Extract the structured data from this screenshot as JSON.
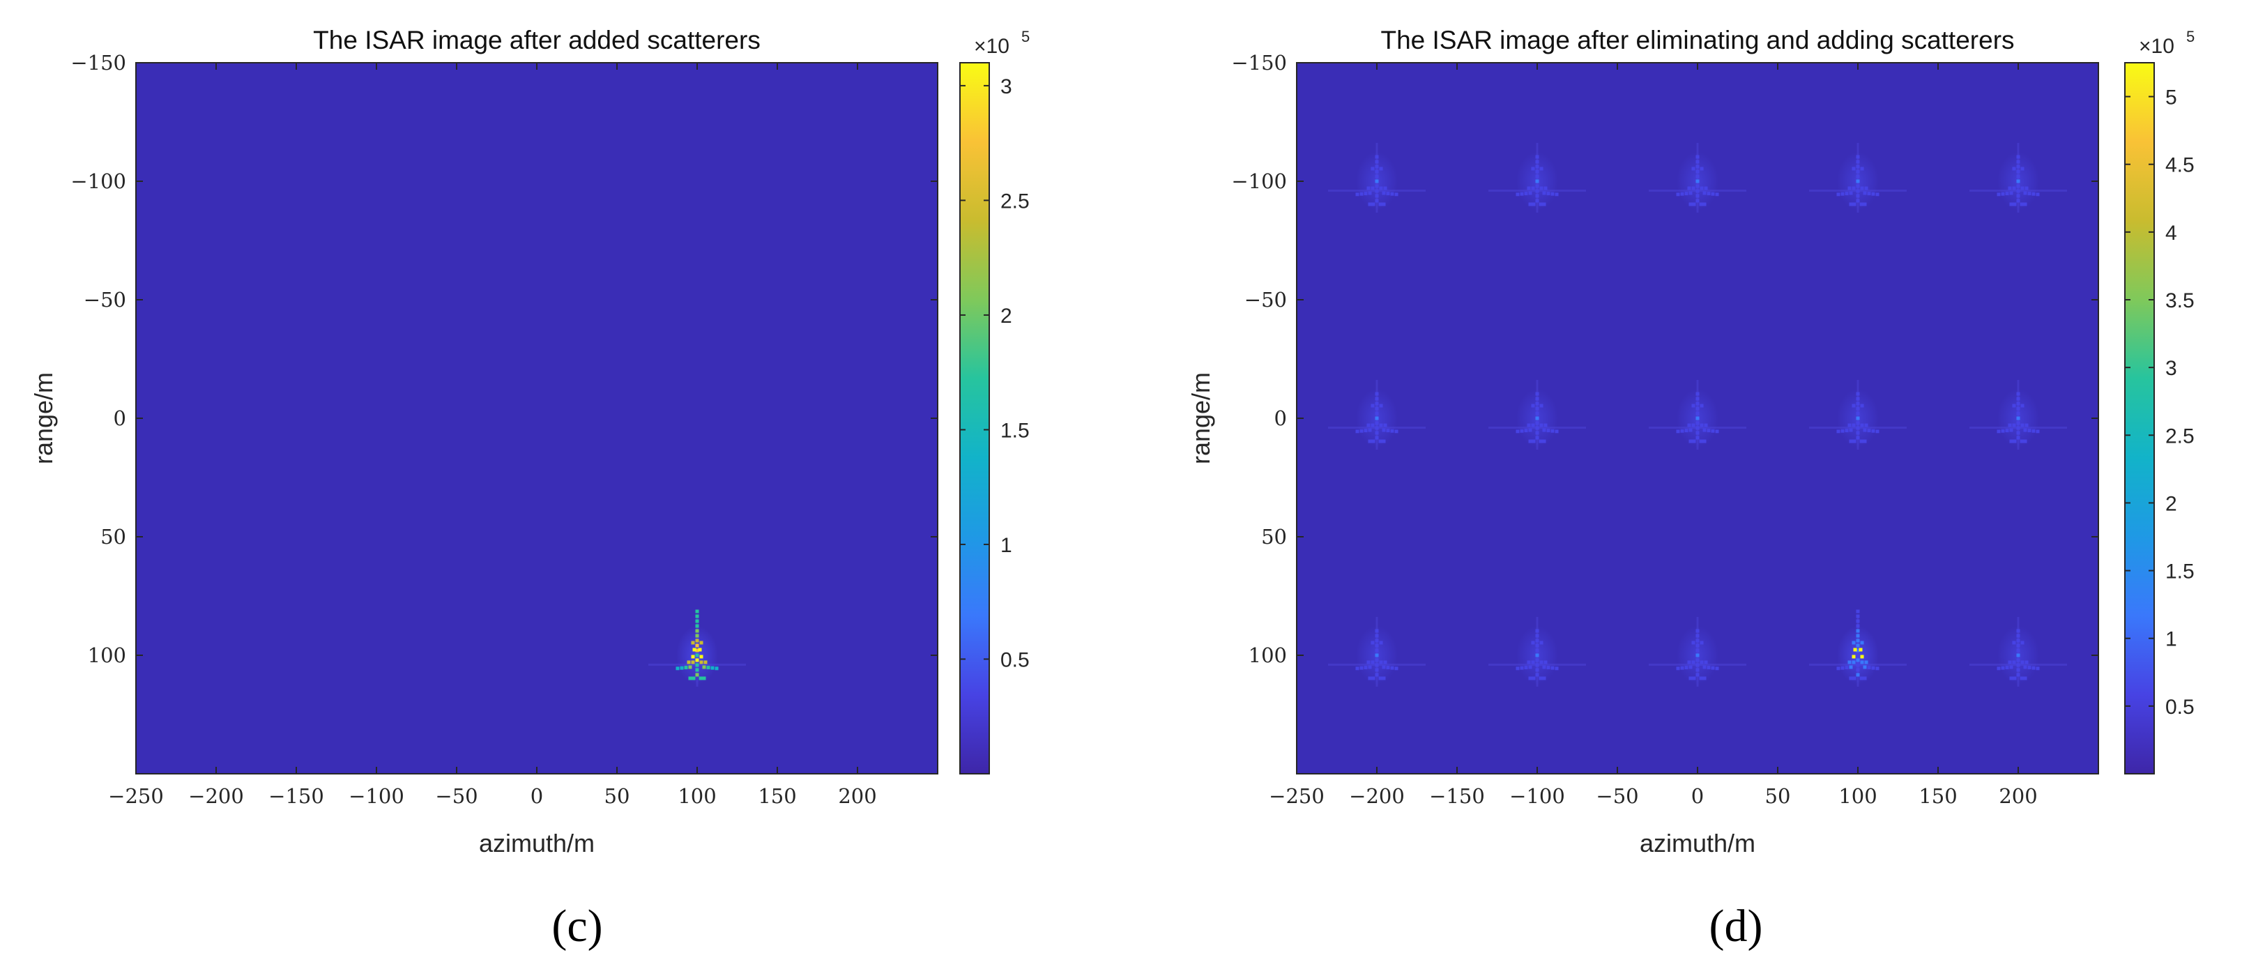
{
  "colors": {
    "background": "#3A2DB6",
    "colormap": [
      "#3E26A8",
      "#4743E4",
      "#3A78FB",
      "#1F99E5",
      "#12B3C9",
      "#27C49E",
      "#7FC95B",
      "#C9BC2F",
      "#F9C236",
      "#F9FB15"
    ]
  },
  "chart_data": [
    {
      "type": "heatmap",
      "panel_label": "(c)",
      "title": "The ISAR image after added scatterers",
      "xlabel": "azimuth/m",
      "ylabel": "range/m",
      "xlim": [
        -250,
        250
      ],
      "ylim": [
        -150,
        150
      ],
      "y_reversed": true,
      "xticks": [
        -250,
        -200,
        -150,
        -100,
        -50,
        0,
        50,
        100,
        150,
        200
      ],
      "xtick_labels": [
        "−250",
        "−200",
        "−150",
        "−100",
        "−50",
        "0",
        "50",
        "100",
        "150",
        "200"
      ],
      "yticks": [
        -150,
        -100,
        -50,
        0,
        50,
        100
      ],
      "ytick_labels": [
        "−150",
        "−100",
        "−50",
        "0",
        "50",
        "100"
      ],
      "colorbar": {
        "min": 0,
        "max": 310000,
        "exponent_label": "×10",
        "exponent_power": "5",
        "ticks": [
          0.5,
          1,
          1.5,
          2,
          2.5,
          3
        ],
        "tick_labels": [
          "0.5",
          "1",
          "1.5",
          "2",
          "2.5",
          "3"
        ]
      },
      "grid": false,
      "targets": [
        {
          "x": 100,
          "y": 100,
          "peak": 310000,
          "strong": true
        }
      ]
    },
    {
      "type": "heatmap",
      "panel_label": "(d)",
      "title": "The ISAR image after eliminating and adding scatterers",
      "xlabel": "azimuth/m",
      "ylabel": "range/m",
      "xlim": [
        -250,
        250
      ],
      "ylim": [
        -150,
        150
      ],
      "y_reversed": true,
      "xticks": [
        -250,
        -200,
        -150,
        -100,
        -50,
        0,
        50,
        100,
        150,
        200
      ],
      "xtick_labels": [
        "−250",
        "−200",
        "−150",
        "−100",
        "−50",
        "0",
        "50",
        "100",
        "150",
        "200"
      ],
      "yticks": [
        -150,
        -100,
        -50,
        0,
        50,
        100
      ],
      "ytick_labels": [
        "−150",
        "−100",
        "−50",
        "0",
        "50",
        "100"
      ],
      "colorbar": {
        "min": 0,
        "max": 525000,
        "exponent_label": "×10",
        "exponent_power": "5",
        "ticks": [
          0.5,
          1,
          1.5,
          2,
          2.5,
          3,
          3.5,
          4,
          4.5,
          5
        ],
        "tick_labels": [
          "0.5",
          "1",
          "1.5",
          "2",
          "2.5",
          "3",
          "3.5",
          "4",
          "4.5",
          "5"
        ]
      },
      "grid": false,
      "targets": [
        {
          "x": -200,
          "y": -100,
          "peak": 90000,
          "strong": false
        },
        {
          "x": -100,
          "y": -100,
          "peak": 90000,
          "strong": false
        },
        {
          "x": 0,
          "y": -100,
          "peak": 90000,
          "strong": false
        },
        {
          "x": 100,
          "y": -100,
          "peak": 90000,
          "strong": false
        },
        {
          "x": 200,
          "y": -100,
          "peak": 90000,
          "strong": false
        },
        {
          "x": -200,
          "y": 0,
          "peak": 90000,
          "strong": false
        },
        {
          "x": -100,
          "y": 0,
          "peak": 90000,
          "strong": false
        },
        {
          "x": 0,
          "y": 0,
          "peak": 90000,
          "strong": false
        },
        {
          "x": 100,
          "y": 0,
          "peak": 90000,
          "strong": false
        },
        {
          "x": 200,
          "y": 0,
          "peak": 90000,
          "strong": false
        },
        {
          "x": -200,
          "y": 100,
          "peak": 90000,
          "strong": false
        },
        {
          "x": -100,
          "y": 100,
          "peak": 90000,
          "strong": false
        },
        {
          "x": 0,
          "y": 100,
          "peak": 90000,
          "strong": false
        },
        {
          "x": 100,
          "y": 100,
          "peak": 140000,
          "strong": true
        },
        {
          "x": 200,
          "y": 100,
          "peak": 90000,
          "strong": false
        }
      ]
    }
  ]
}
